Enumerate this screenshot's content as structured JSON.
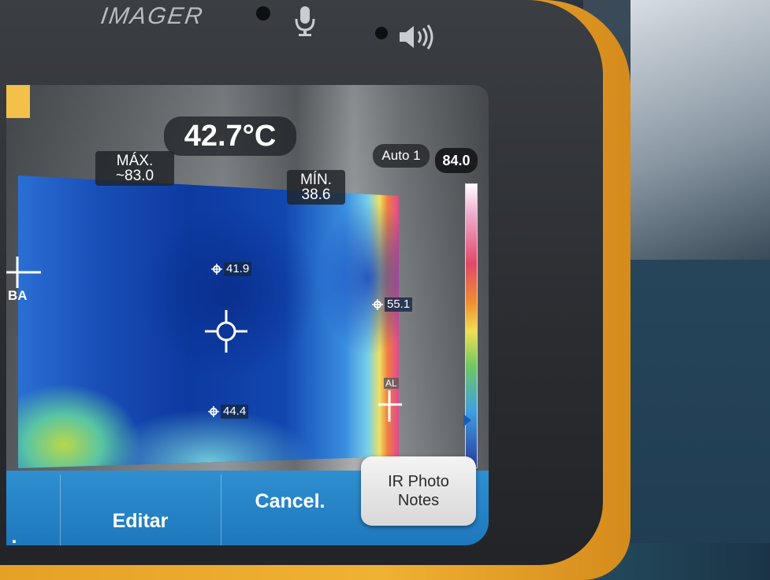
{
  "device": {
    "brand_text": "IMAGER"
  },
  "screen": {
    "main_temp": "42.7°C",
    "max": {
      "label": "MÁX.",
      "value": "~83.0"
    },
    "min": {
      "label": "MÍN.",
      "value": "38.6"
    },
    "scale_mode": "Auto 1",
    "scale_max": "84.0",
    "spots": [
      "41.9",
      "55.1",
      "44.4"
    ],
    "markers": {
      "low": "BA",
      "high": "AL"
    }
  },
  "bottom_bar": {
    "partial_left": ".",
    "editar": "Editar",
    "cancel": "Cancel.",
    "ir_photo_notes_line1": "IR Photo",
    "ir_photo_notes_line2": "Notes"
  },
  "colors": {
    "device_body": "#f0b233",
    "bar_blue": "#2f8fd0"
  }
}
